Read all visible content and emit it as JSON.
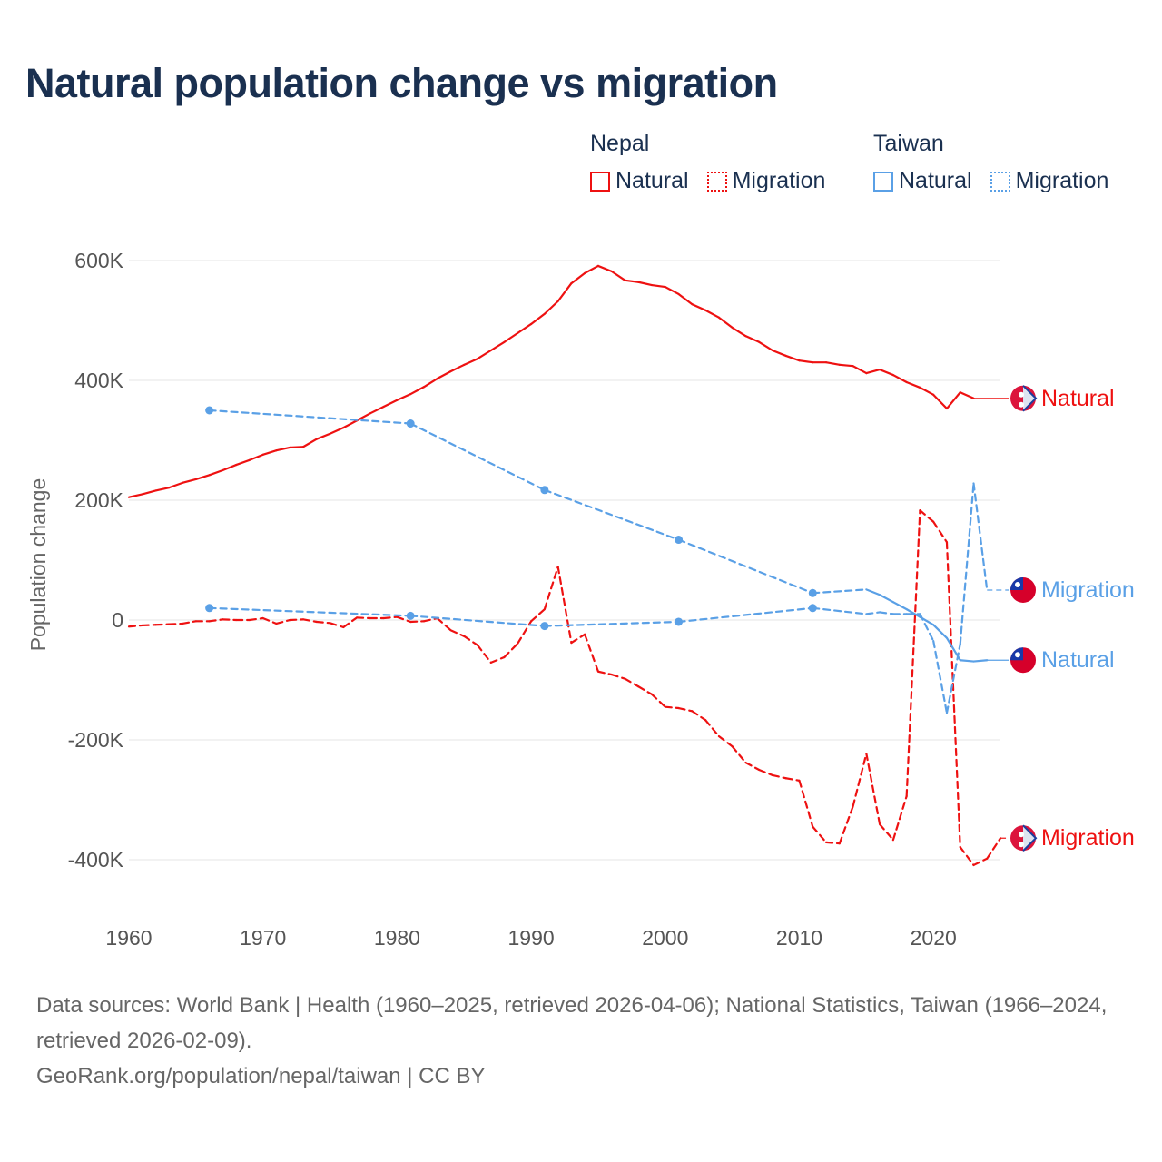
{
  "title": "Natural population change vs migration",
  "legend": {
    "groups": [
      {
        "country": "Nepal",
        "color": "#ee1111",
        "items": [
          "Natural",
          "Migration"
        ]
      },
      {
        "country": "Taiwan",
        "color": "#5aa0e6",
        "items": [
          "Natural",
          "Migration"
        ]
      }
    ]
  },
  "footer": {
    "sources": "Data sources: World Bank | Health (1960–2025, retrieved 2026-04-06); National Statistics, Taiwan (1966–2024, retrieved 2026-02-09).",
    "credit": "GeoRank.org/population/nepal/taiwan | CC BY"
  },
  "chart_data": {
    "type": "line",
    "title": "Natural population change vs migration",
    "xlabel": "",
    "ylabel": "Population change",
    "xlim": [
      1960,
      2025
    ],
    "ylim": [
      -500000,
      650000
    ],
    "x_ticks": [
      1960,
      1970,
      1980,
      1990,
      2000,
      2010,
      2020
    ],
    "y_ticks": [
      600000,
      400000,
      200000,
      0,
      -200000,
      -400000
    ],
    "y_tick_labels": [
      "600K",
      "400K",
      "200K",
      "0",
      "-200K",
      "-400K"
    ],
    "grid": true,
    "series": [
      {
        "name": "Nepal Natural",
        "label": "Natural",
        "country": "Nepal",
        "color": "#ee1111",
        "style": "solid",
        "x": [
          1960,
          1961,
          1962,
          1963,
          1964,
          1965,
          1966,
          1967,
          1968,
          1969,
          1970,
          1971,
          1972,
          1973,
          1974,
          1975,
          1976,
          1977,
          1978,
          1979,
          1980,
          1981,
          1982,
          1983,
          1984,
          1985,
          1986,
          1987,
          1988,
          1989,
          1990,
          1991,
          1992,
          1993,
          1994,
          1995,
          1996,
          1997,
          1998,
          1999,
          2000,
          2001,
          2002,
          2003,
          2004,
          2005,
          2006,
          2007,
          2008,
          2009,
          2010,
          2011,
          2012,
          2013,
          2014,
          2015,
          2016,
          2017,
          2018,
          2019,
          2020,
          2021,
          2022,
          2023
        ],
        "y": [
          205,
          210,
          216,
          221,
          229,
          235,
          242,
          250,
          259,
          267,
          276,
          283,
          288,
          289,
          302,
          311,
          321,
          333,
          345,
          356,
          367,
          377,
          389,
          403,
          415,
          426,
          436,
          450,
          464,
          479,
          494,
          511,
          532,
          562,
          579,
          591,
          582,
          567,
          564,
          559,
          556,
          544,
          527,
          517,
          505,
          488,
          474,
          464,
          450,
          441,
          433,
          430,
          430,
          426,
          424,
          412,
          418,
          409,
          397,
          388,
          376,
          353,
          380,
          370
        ]
      },
      {
        "name": "Nepal Migration",
        "label": "Migration",
        "country": "Nepal",
        "color": "#ee1111",
        "style": "dashed",
        "x": [
          1960,
          1961,
          1962,
          1963,
          1964,
          1965,
          1966,
          1967,
          1968,
          1969,
          1970,
          1971,
          1972,
          1973,
          1974,
          1975,
          1976,
          1977,
          1978,
          1979,
          1980,
          1981,
          1982,
          1983,
          1984,
          1985,
          1986,
          1987,
          1988,
          1989,
          1990,
          1991,
          1992,
          1993,
          1994,
          1995,
          1996,
          1997,
          1998,
          1999,
          2000,
          2001,
          2002,
          2003,
          2004,
          2005,
          2006,
          2007,
          2008,
          2009,
          2010,
          2011,
          2012,
          2013,
          2014,
          2015,
          2016,
          2017,
          2018,
          2019,
          2020,
          2021,
          2022,
          2023,
          2024,
          2025
        ],
        "y": [
          -11,
          -9,
          -8,
          -7,
          -6,
          -2,
          -2,
          1,
          0,
          0,
          3,
          -6,
          0,
          1,
          -3,
          -5,
          -12,
          4,
          3,
          3,
          5,
          -3,
          -2,
          3,
          -17,
          -27,
          -42,
          -71,
          -62,
          -39,
          -2,
          18,
          89,
          -38,
          -24,
          -86,
          -91,
          -98,
          -111,
          -124,
          -145,
          -147,
          -152,
          -167,
          -194,
          -211,
          -238,
          -250,
          -259,
          -264,
          -268,
          -345,
          -371,
          -373,
          -311,
          -223,
          -341,
          -367,
          -294,
          183,
          164,
          130,
          -379,
          -409,
          -398,
          -364
        ]
      },
      {
        "name": "Taiwan Natural",
        "label": "Natural",
        "country": "Taiwan",
        "color": "#5aa0e6",
        "style": "solid",
        "x": [
          1966,
          1981,
          1991,
          2001,
          2011,
          2015,
          2016,
          2017,
          2018,
          2019,
          2020,
          2021,
          2022,
          2023,
          2024
        ],
        "y": [
          350,
          328,
          217,
          134,
          45,
          51,
          42,
          30,
          18,
          5,
          -8,
          -30,
          -67,
          -69,
          -67
        ]
      },
      {
        "name": "Taiwan Migration",
        "label": "Migration",
        "country": "Taiwan",
        "color": "#5aa0e6",
        "style": "dashed",
        "x": [
          1966,
          1981,
          1991,
          2001,
          2011,
          2015,
          2016,
          2017,
          2018,
          2019,
          2020,
          2021,
          2022,
          2023,
          2024
        ],
        "y": [
          20,
          7,
          -10,
          -3,
          20,
          10,
          13,
          10,
          10,
          10,
          -35,
          -155,
          -40,
          228,
          50
        ]
      }
    ],
    "y_unit": "thousands"
  }
}
